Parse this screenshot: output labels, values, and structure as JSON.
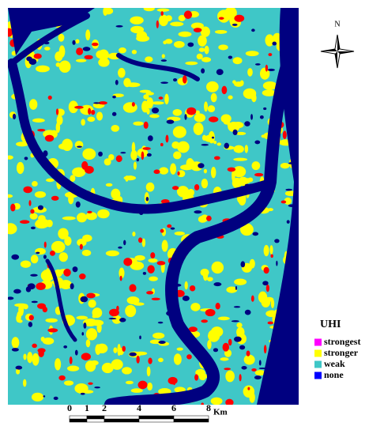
{
  "map": {
    "north_label": "N",
    "legend": {
      "title": "UHI",
      "items": [
        {
          "label": "strongest",
          "color": "#ff00ff"
        },
        {
          "label": "stronger",
          "color": "#ffff00"
        },
        {
          "label": "weak",
          "color": "#3fc7c7"
        },
        {
          "label": "none",
          "color": "#0000ff"
        }
      ]
    },
    "scale_bar": {
      "ticks": [
        0,
        1,
        2,
        4,
        6,
        8
      ],
      "unit": "Km"
    }
  }
}
